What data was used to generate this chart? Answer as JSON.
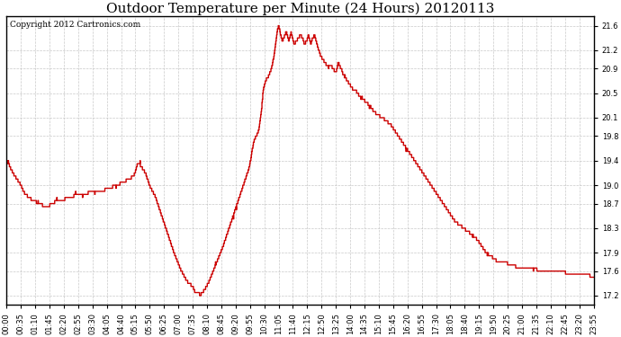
{
  "title": "Outdoor Temperature per Minute (24 Hours) 20120113",
  "copyright_text": "Copyright 2012 Cartronics.com",
  "line_color": "#cc0000",
  "background_color": "#ffffff",
  "grid_color": "#bbbbbb",
  "yticks": [
    17.2,
    17.6,
    17.9,
    18.3,
    18.7,
    19.0,
    19.4,
    19.8,
    20.1,
    20.5,
    20.9,
    21.2,
    21.6
  ],
  "ylim": [
    17.05,
    21.75
  ],
  "xtick_labels": [
    "00:00",
    "00:35",
    "01:10",
    "01:45",
    "02:20",
    "02:55",
    "03:30",
    "04:05",
    "04:40",
    "05:15",
    "05:50",
    "06:25",
    "07:00",
    "07:35",
    "08:10",
    "08:45",
    "09:20",
    "09:55",
    "10:30",
    "11:05",
    "11:40",
    "12:15",
    "12:50",
    "13:25",
    "14:00",
    "14:35",
    "15:10",
    "15:45",
    "16:20",
    "16:55",
    "17:30",
    "18:05",
    "18:40",
    "19:15",
    "19:50",
    "20:25",
    "21:00",
    "21:35",
    "22:10",
    "22:45",
    "23:20",
    "23:55"
  ],
  "title_fontsize": 11,
  "copyright_fontsize": 6.5,
  "tick_fontsize": 6,
  "line_width": 1.0
}
